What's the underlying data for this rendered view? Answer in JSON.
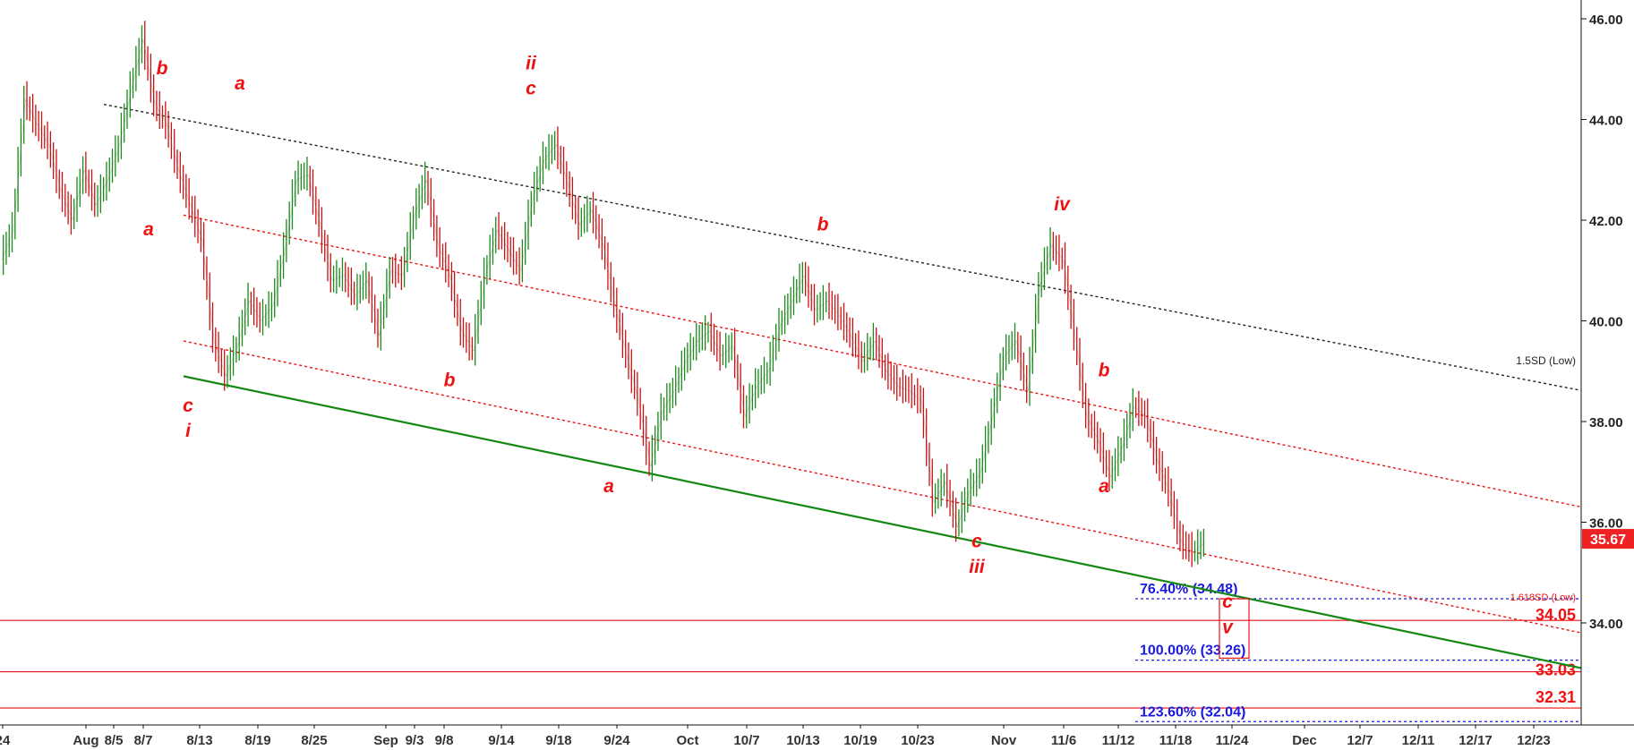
{
  "chart_data": {
    "type": "line",
    "title": "",
    "xlabel": "",
    "ylabel": "",
    "ylim": [
      31.3,
      46.3
    ],
    "y_ticks": [
      "46.00",
      "44.00",
      "42.00",
      "40.00",
      "38.00",
      "36.00",
      "34.00"
    ],
    "x_ticks": [
      "24",
      "Aug",
      "8/5",
      "8/7",
      "8/13",
      "8/19",
      "8/25",
      "Sep",
      "9/3",
      "9/8",
      "9/14",
      "9/18",
      "9/24",
      "Oct",
      "10/7",
      "10/13",
      "10/19",
      "10/23",
      "Nov",
      "11/6",
      "11/12",
      "11/18",
      "11/24",
      "Dec",
      "12/7",
      "12/11",
      "12/17",
      "12/23"
    ],
    "last_price": "35.67",
    "series": [
      {
        "values": [
          41.2,
          41.8,
          44.4,
          43.9,
          43.5,
          42.6,
          42.0,
          43.0,
          42.3,
          42.8,
          43.5,
          44.6,
          45.6,
          44.3,
          43.9,
          43.0,
          42.3,
          41.6,
          39.6,
          38.9,
          39.5,
          40.4,
          40.0,
          40.3,
          41.4,
          42.8,
          42.9,
          41.9,
          40.8,
          40.9,
          40.5,
          40.8,
          39.7,
          41.0,
          40.9,
          42.1,
          42.8,
          41.5,
          40.9,
          39.8,
          39.4,
          40.9,
          41.8,
          41.4,
          41.0,
          42.4,
          43.2,
          43.5,
          42.7,
          41.9,
          42.2,
          41.5,
          40.3,
          39.3,
          38.4,
          37.1,
          38.2,
          38.6,
          39.2,
          39.6,
          39.8,
          39.3,
          39.5,
          38.1,
          38.7,
          39.0,
          39.9,
          40.4,
          40.9,
          40.2,
          40.4,
          40.1,
          39.7,
          39.2,
          39.6,
          39.0,
          38.7,
          38.6,
          38.4,
          36.4,
          36.8,
          35.9,
          36.6,
          37.0,
          38.1,
          39.3,
          39.6,
          38.6,
          40.7,
          41.5,
          41.2,
          39.7,
          38.1,
          37.6,
          36.9,
          37.5,
          38.3,
          38.1,
          37.2,
          36.6,
          35.6,
          35.4,
          35.6
        ]
      }
    ],
    "channel_lines": [
      {
        "label": "1.5SD (Low)",
        "style": "dotted",
        "color": "#222222",
        "start": {
          "x": "8/7",
          "y": 44.3
        },
        "end": {
          "x": "12/23",
          "y": 38.8
        }
      },
      {
        "label": "1.618SD (Low)",
        "style": "dotted",
        "color": "#ee1111",
        "start": {
          "x": "8/13",
          "y": 42.1
        },
        "end": {
          "x": "12/23",
          "y": 36.5
        }
      },
      {
        "label": "",
        "style": "dotted",
        "color": "#ee1111",
        "start": {
          "x": "8/13",
          "y": 39.6
        },
        "end": {
          "x": "12/23",
          "y": 34.0
        }
      },
      {
        "label": "",
        "style": "solid",
        "color": "#128812",
        "start": {
          "x": "8/13",
          "y": 38.9
        },
        "end": {
          "x": "12/23",
          "y": 33.3
        }
      }
    ],
    "horizontal_levels": [
      {
        "label": "34.05",
        "value": 34.05,
        "color": "#ee1111"
      },
      {
        "label": "33.03",
        "value": 33.03,
        "color": "#ee1111"
      },
      {
        "label": "32.31",
        "value": 32.31,
        "color": "#ee1111"
      }
    ],
    "fib_levels": [
      {
        "label": "76.40% (34.48)",
        "value": 34.48,
        "color": "#1a1add"
      },
      {
        "label": "100.00% (33.26)",
        "value": 33.26,
        "color": "#1a1add"
      },
      {
        "label": "123.60% (32.04)",
        "value": 32.04,
        "color": "#1a1add"
      }
    ],
    "annotations": [
      {
        "text": "b",
        "x": "8/7",
        "y": 44.9
      },
      {
        "text": "a",
        "x": "8/5",
        "y": 41.7
      },
      {
        "text": "c",
        "x": "8/13",
        "y": 38.2
      },
      {
        "text": "i",
        "x": "8/13",
        "y": 37.7
      },
      {
        "text": "a",
        "x": "8/19",
        "y": 44.6
      },
      {
        "text": "b",
        "x": "9/8",
        "y": 38.7
      },
      {
        "text": "ii",
        "x": "9/14",
        "y": 45.0
      },
      {
        "text": "c",
        "x": "9/14",
        "y": 44.5
      },
      {
        "text": "a",
        "x": "9/24",
        "y": 36.6
      },
      {
        "text": "b",
        "x": "10/13",
        "y": 41.8
      },
      {
        "text": "c",
        "x": "10/23",
        "y": 35.5
      },
      {
        "text": "iii",
        "x": "10/23",
        "y": 35.0
      },
      {
        "text": "iv",
        "x": "11/6",
        "y": 42.2
      },
      {
        "text": "b",
        "x": "11/12",
        "y": 38.9
      },
      {
        "text": "a",
        "x": "11/12",
        "y": 36.6
      },
      {
        "text": "c",
        "x": "11/18",
        "y": 34.3
      },
      {
        "text": "v",
        "x": "11/18",
        "y": 33.8
      }
    ],
    "colors": {
      "up": "#1a8a1a",
      "down": "#cc1111",
      "green_line": "#128812",
      "red": "#ee1111",
      "blue": "#1a1add",
      "price_tag": "#ee2222"
    },
    "grid": false,
    "legend": "none"
  }
}
